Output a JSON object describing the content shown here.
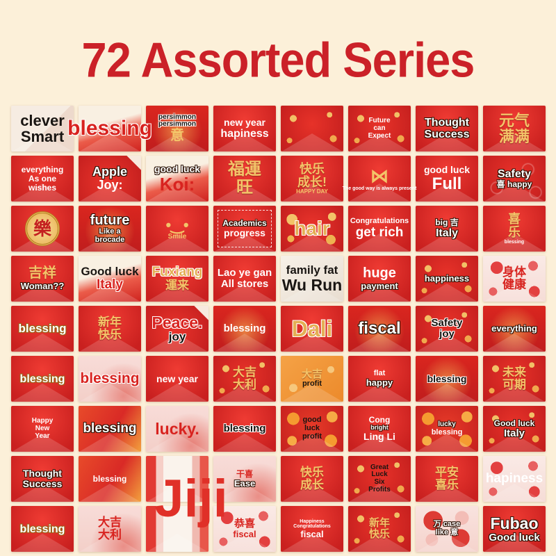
{
  "title": "72 Assorted Series",
  "colors": {
    "background": "#fcf0d9",
    "title": "#cb2128",
    "envelope_red": "#d8231f",
    "gold": "#f3c469"
  },
  "grid": {
    "columns": 8,
    "rows": 9,
    "total": 72
  },
  "overlay": {
    "jiji": "Jiji"
  },
  "tiles": [
    {
      "bg": "lightfold",
      "lines": [
        {
          "t": "clever",
          "c": "b",
          "z": 22
        },
        {
          "t": "Smart",
          "c": "b",
          "z": 22
        }
      ]
    },
    {
      "bg": "cream-red",
      "lines": [
        {
          "t": "blessing",
          "c": "ro",
          "z": 30
        }
      ]
    },
    {
      "bg": "red-gold",
      "lines": [
        {
          "t": "persimmon",
          "c": "bo",
          "z": 10
        },
        {
          "t": "persimmon",
          "c": "bo",
          "z": 10
        },
        {
          "t": "意",
          "c": "g",
          "z": 20
        }
      ]
    },
    {
      "bg": "red",
      "lines": [
        {
          "t": "new year",
          "c": "w",
          "z": 14
        },
        {
          "t": "hapiness",
          "c": "w",
          "z": 16
        }
      ]
    },
    {
      "bg": "red-flowers",
      "lines": []
    },
    {
      "bg": "red-flowers",
      "lines": [
        {
          "t": "Future",
          "c": "w",
          "z": 10
        },
        {
          "t": "can",
          "c": "w",
          "z": 10
        },
        {
          "t": "Expect",
          "c": "w",
          "z": 10
        }
      ]
    },
    {
      "bg": "red",
      "lines": [
        {
          "t": "Thought",
          "c": "wo",
          "z": 16
        },
        {
          "t": "Success",
          "c": "wo",
          "z": 16
        }
      ]
    },
    {
      "bg": "red",
      "lines": [
        {
          "t": "元气",
          "c": "gc",
          "z": 22
        },
        {
          "t": "满满",
          "c": "gc",
          "z": 22
        }
      ]
    },
    {
      "bg": "red",
      "lines": [
        {
          "t": "everything",
          "c": "w",
          "z": 12
        },
        {
          "t": "As one",
          "c": "w",
          "z": 12
        },
        {
          "t": "wishes",
          "c": "w",
          "z": 12
        }
      ]
    },
    {
      "bg": "red-fold",
      "lines": [
        {
          "t": "Apple",
          "c": "wo",
          "z": 18
        },
        {
          "t": "Joy:",
          "c": "w",
          "z": 18
        }
      ]
    },
    {
      "bg": "cream-red",
      "lines": [
        {
          "t": "good luck",
          "c": "wo",
          "z": 14
        },
        {
          "t": "Koi:",
          "c": "r",
          "z": 26
        }
      ]
    },
    {
      "bg": "red",
      "lines": [
        {
          "t": "福運",
          "c": "gc",
          "z": 24
        },
        {
          "t": "旺",
          "c": "gc",
          "z": 24
        }
      ]
    },
    {
      "bg": "red",
      "lines": [
        {
          "t": "快乐",
          "c": "gc",
          "z": 18
        },
        {
          "t": "成长!",
          "c": "gc",
          "z": 18
        },
        {
          "t": "HAPPY DAY",
          "c": "g",
          "z": 8
        }
      ]
    },
    {
      "bg": "red",
      "lines": [
        {
          "t": "⋈",
          "c": "g",
          "z": 26,
          "icon": "bow"
        },
        {
          "t": "The good way is always present",
          "c": "w",
          "z": 7
        }
      ]
    },
    {
      "bg": "red",
      "lines": [
        {
          "t": "good luck",
          "c": "w",
          "z": 14
        },
        {
          "t": "Full",
          "c": "w",
          "z": 24
        }
      ]
    },
    {
      "bg": "red-pattern",
      "lines": [
        {
          "t": "Safety",
          "c": "wo",
          "z": 16
        },
        {
          "t": "喜 happy",
          "c": "wo",
          "z": 12
        }
      ]
    },
    {
      "bg": "red",
      "lines": [
        {
          "t": "樂",
          "c": "seal",
          "z": 26,
          "icon": "joy-seal"
        }
      ]
    },
    {
      "bg": "red-gold",
      "lines": [
        {
          "t": "future",
          "c": "wo",
          "z": 20
        },
        {
          "t": "Like a",
          "c": "wo",
          "z": 11
        },
        {
          "t": "brocade",
          "c": "wo",
          "z": 11
        }
      ]
    },
    {
      "bg": "red",
      "lines": [
        {
          "t": "•‿•",
          "c": "g",
          "z": 22,
          "icon": "smiley"
        },
        {
          "t": "Smile",
          "c": "g",
          "z": 10
        }
      ]
    },
    {
      "bg": "red-dashed",
      "lines": [
        {
          "t": "Academics",
          "c": "wo",
          "z": 12
        },
        {
          "t": "progress",
          "c": "w",
          "z": 14
        }
      ]
    },
    {
      "bg": "red-coins",
      "lines": [
        {
          "t": "hair",
          "c": "go",
          "z": 28
        }
      ]
    },
    {
      "bg": "red",
      "lines": [
        {
          "t": "Congratulations",
          "c": "w",
          "z": 11
        },
        {
          "t": "get rich",
          "c": "w",
          "z": 19
        }
      ]
    },
    {
      "bg": "red",
      "lines": [
        {
          "t": "big 吉",
          "c": "wo",
          "z": 12
        },
        {
          "t": "Italy",
          "c": "wo",
          "z": 16
        }
      ]
    },
    {
      "bg": "red",
      "lines": [
        {
          "t": "喜",
          "c": "gc",
          "z": 18
        },
        {
          "t": "乐",
          "c": "gc",
          "z": 18
        },
        {
          "t": "blessing",
          "c": "w",
          "z": 7
        }
      ]
    },
    {
      "bg": "red",
      "lines": [
        {
          "t": "吉祥",
          "c": "gc",
          "z": 20
        },
        {
          "t": "Woman??",
          "c": "wo",
          "z": 13
        }
      ]
    },
    {
      "bg": "cream-red",
      "lines": [
        {
          "t": "Good luck",
          "c": "b",
          "z": 17
        },
        {
          "t": "Italy",
          "c": "ro",
          "z": 19
        }
      ]
    },
    {
      "bg": "red",
      "lines": [
        {
          "t": "Fuxiang",
          "c": "go",
          "z": 19
        },
        {
          "t": "運来",
          "c": "gc",
          "z": 17
        }
      ]
    },
    {
      "bg": "red",
      "lines": [
        {
          "t": "Lao ye gan",
          "c": "w",
          "z": 15
        },
        {
          "t": "All stores",
          "c": "w",
          "z": 15
        }
      ]
    },
    {
      "bg": "white",
      "lines": [
        {
          "t": "family fat",
          "c": "b",
          "z": 17
        },
        {
          "t": "Wu Run",
          "c": "b",
          "z": 23
        }
      ]
    },
    {
      "bg": "red",
      "lines": [
        {
          "t": "huge",
          "c": "w",
          "z": 20
        },
        {
          "t": "payment",
          "c": "wo",
          "z": 13
        }
      ]
    },
    {
      "bg": "red-flowers",
      "lines": [
        {
          "t": "happiness",
          "c": "wo",
          "z": 13
        }
      ]
    },
    {
      "bg": "pinkflower",
      "lines": [
        {
          "t": "身体",
          "c": "rc",
          "z": 17
        },
        {
          "t": "健康",
          "c": "rc",
          "z": 17
        }
      ]
    },
    {
      "bg": "red",
      "lines": [
        {
          "t": "blessing",
          "c": "wg",
          "z": 17
        }
      ]
    },
    {
      "bg": "red",
      "lines": [
        {
          "t": "新年",
          "c": "gc",
          "z": 17
        },
        {
          "t": "快乐",
          "c": "gc",
          "z": 17
        }
      ]
    },
    {
      "bg": "red-fold",
      "lines": [
        {
          "t": "Peace.",
          "c": "ro",
          "z": 23
        },
        {
          "t": "joy",
          "c": "bo",
          "z": 17
        }
      ]
    },
    {
      "bg": "red-gold",
      "lines": [
        {
          "t": "blessing",
          "c": "w",
          "z": 15
        }
      ]
    },
    {
      "bg": "red",
      "lines": [
        {
          "t": "Dali",
          "c": "go",
          "z": 32
        }
      ]
    },
    {
      "bg": "red-gold",
      "lines": [
        {
          "t": "fiscal",
          "c": "wo",
          "z": 24
        }
      ]
    },
    {
      "bg": "red-flowers",
      "lines": [
        {
          "t": "Safety",
          "c": "bo",
          "z": 15
        },
        {
          "t": "joy",
          "c": "bo",
          "z": 15
        }
      ]
    },
    {
      "bg": "red-gold",
      "lines": [
        {
          "t": "everything",
          "c": "wo",
          "z": 13
        }
      ]
    },
    {
      "bg": "red",
      "lines": [
        {
          "t": "blessing",
          "c": "wg",
          "z": 16
        }
      ]
    },
    {
      "bg": "pink",
      "lines": [
        {
          "t": "blessing",
          "c": "ro",
          "z": 21
        }
      ]
    },
    {
      "bg": "red",
      "lines": [
        {
          "t": "new year",
          "c": "w",
          "z": 14
        }
      ]
    },
    {
      "bg": "red-flowers",
      "lines": [
        {
          "t": "大吉",
          "c": "gc",
          "z": 17
        },
        {
          "t": "大利",
          "c": "gc",
          "z": 17
        }
      ]
    },
    {
      "bg": "orange",
      "lines": [
        {
          "t": "大吉",
          "c": "gc",
          "z": 15
        },
        {
          "t": "profit",
          "c": "b",
          "z": 11
        }
      ]
    },
    {
      "bg": "red",
      "lines": [
        {
          "t": "flat",
          "c": "w",
          "z": 11
        },
        {
          "t": "happy",
          "c": "wo",
          "z": 13
        }
      ]
    },
    {
      "bg": "red-gold",
      "lines": [
        {
          "t": "blessing",
          "c": "bo",
          "z": 14
        }
      ]
    },
    {
      "bg": "red-flowers",
      "lines": [
        {
          "t": "未来",
          "c": "gc",
          "z": 17
        },
        {
          "t": "可期",
          "c": "gc",
          "z": 17
        }
      ]
    },
    {
      "bg": "red",
      "lines": [
        {
          "t": "Happy",
          "c": "w",
          "z": 10
        },
        {
          "t": "New",
          "c": "w",
          "z": 10
        },
        {
          "t": "Year",
          "c": "w",
          "z": 10
        }
      ]
    },
    {
      "bg": "red-orange",
      "lines": [
        {
          "t": "blessing",
          "c": "wo",
          "z": 19
        }
      ]
    },
    {
      "bg": "pink",
      "lines": [
        {
          "t": "lucky.",
          "c": "r",
          "z": 23
        }
      ]
    },
    {
      "bg": "red",
      "lines": [
        {
          "t": "blessing",
          "c": "bo",
          "z": 15
        }
      ]
    },
    {
      "bg": "red-oranges",
      "lines": [
        {
          "t": "good",
          "c": "b",
          "z": 11
        },
        {
          "t": "luck",
          "c": "b",
          "z": 11
        },
        {
          "t": "profit",
          "c": "b",
          "z": 11
        }
      ]
    },
    {
      "bg": "red",
      "lines": [
        {
          "t": "Cong",
          "c": "w",
          "z": 12
        },
        {
          "t": "bright",
          "c": "wo",
          "z": 9
        },
        {
          "t": "Ling Li",
          "c": "w",
          "z": 14
        }
      ]
    },
    {
      "bg": "red-oranges",
      "lines": [
        {
          "t": "lucky",
          "c": "wo",
          "z": 10
        },
        {
          "t": "blessing",
          "c": "w",
          "z": 11
        }
      ]
    },
    {
      "bg": "red-flowers",
      "lines": [
        {
          "t": "Good luck",
          "c": "wo",
          "z": 12
        },
        {
          "t": "Italy",
          "c": "wo",
          "z": 15
        }
      ]
    },
    {
      "bg": "red",
      "lines": [
        {
          "t": "Thought",
          "c": "wo",
          "z": 14
        },
        {
          "t": "Success",
          "c": "wo",
          "z": 14
        }
      ]
    },
    {
      "bg": "red-orange",
      "lines": [
        {
          "t": "blessing",
          "c": "w",
          "z": 12
        }
      ]
    },
    {
      "bg": "pinkstripe",
      "lines": []
    },
    {
      "bg": "pink",
      "lines": [
        {
          "t": "干喜",
          "c": "rc",
          "z": 12
        },
        {
          "t": "Ease",
          "c": "wo",
          "z": 13
        }
      ]
    },
    {
      "bg": "red",
      "lines": [
        {
          "t": "快乐",
          "c": "gc",
          "z": 17
        },
        {
          "t": "成长",
          "c": "gc",
          "z": 17
        }
      ]
    },
    {
      "bg": "red-flowers",
      "lines": [
        {
          "t": "Great",
          "c": "b",
          "z": 10
        },
        {
          "t": "Luck",
          "c": "b",
          "z": 10
        },
        {
          "t": "Six",
          "c": "b",
          "z": 10
        },
        {
          "t": "Profits",
          "c": "b",
          "z": 10
        }
      ]
    },
    {
      "bg": "red",
      "lines": [
        {
          "t": "平安",
          "c": "gc",
          "z": 17
        },
        {
          "t": "喜乐",
          "c": "gc",
          "z": 17
        }
      ]
    },
    {
      "bg": "pinkflower",
      "lines": [
        {
          "t": "hapiness",
          "c": "w",
          "z": 19
        }
      ]
    },
    {
      "bg": "red",
      "lines": [
        {
          "t": "blessing",
          "c": "wg",
          "z": 16
        }
      ]
    },
    {
      "bg": "pink",
      "lines": [
        {
          "t": "大吉",
          "c": "rc",
          "z": 17
        },
        {
          "t": "大利",
          "c": "rc",
          "z": 17
        }
      ]
    },
    {
      "bg": "pinkstripe",
      "lines": []
    },
    {
      "bg": "pinkflower",
      "lines": [
        {
          "t": "恭喜",
          "c": "rc",
          "z": 15
        },
        {
          "t": "fiscal",
          "c": "r",
          "z": 13
        }
      ]
    },
    {
      "bg": "red",
      "lines": [
        {
          "t": "Happiness",
          "c": "w",
          "z": 7
        },
        {
          "t": "Congratulations",
          "c": "w",
          "z": 7
        },
        {
          "t": "fiscal",
          "c": "w",
          "z": 13
        }
      ]
    },
    {
      "bg": "red-flowers",
      "lines": [
        {
          "t": "新年",
          "c": "gc",
          "z": 15
        },
        {
          "t": "快乐",
          "c": "gc",
          "z": 15
        }
      ]
    },
    {
      "bg": "pinkcircles",
      "lines": [
        {
          "t": "万 case",
          "c": "wo",
          "z": 11
        },
        {
          "t": "like 意",
          "c": "wo",
          "z": 11
        }
      ]
    },
    {
      "bg": "red",
      "lines": [
        {
          "t": "Fubao",
          "c": "wo",
          "z": 23
        },
        {
          "t": "Good luck",
          "c": "wo",
          "z": 15
        }
      ]
    }
  ]
}
